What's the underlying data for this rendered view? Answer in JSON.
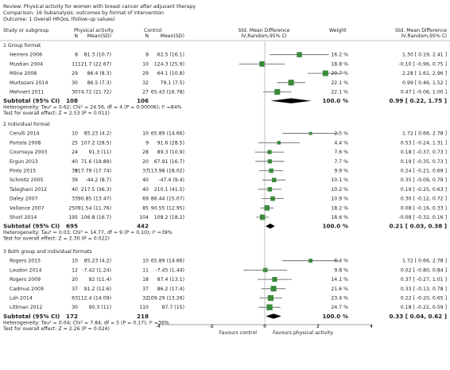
{
  "header": {
    "review": "Review:  Physical activity for women with breast cancer after adjuvant therapy",
    "comparison": "Comparison:  16 Subanalysis: outcomes by format of intervention",
    "outcome": "Outcome:  1 Overall HRQoL (follow-up values)"
  },
  "columns": {
    "study": "Study or subgroup",
    "group1": "Physical activity",
    "group2": "Control",
    "n": "N",
    "mean_sd": "Mean(SD)",
    "effect": "Std. Mean Difference",
    "effect_method": "IV,Random,95% CI",
    "weight": "Weight",
    "effect2": "Std. Mean Difference",
    "effect2_method": "IV,Random,95% CI"
  },
  "colors": {
    "marker": "#3a8a3a",
    "line": "#555555",
    "diamond": "#000000"
  },
  "chart_data": {
    "type": "forest",
    "xlim": [
      -4,
      4
    ],
    "ticks": [
      -4,
      -2,
      0,
      2,
      4
    ],
    "x_left_label": "Favours control",
    "x_right_label": "Favours physical activity",
    "subgroups": [
      {
        "title": "1 Group format",
        "studies": [
          {
            "name": "Herrero 2006",
            "n1": "8",
            "ms1": "81.3 (10.7)",
            "n2": "8",
            "ms2": "62.5 (16.1)",
            "weight": "16.2 %",
            "ci_text": "1.30 [ 0.19, 2.41 ]",
            "est": 1.3,
            "lo": 0.19,
            "hi": 2.41
          },
          {
            "name": "Mustian 2004",
            "n1": "11",
            "ms1": "121.7 (22.67)",
            "n2": "10",
            "ms2": "124.3 (25.9)",
            "weight": "18.8 %",
            "ci_text": "-0.10 [ -0.96, 0.75 ]",
            "est": -0.1,
            "lo": -0.96,
            "hi": 0.75
          },
          {
            "name": "Milne 2008",
            "n1": "29",
            "ms1": "86.4 (8.3)",
            "n2": "29",
            "ms2": "64.1 (10.8)",
            "weight": "20.7 %",
            "ci_text": "2.28 [ 1.61, 2.96 ]",
            "est": 2.28,
            "lo": 1.61,
            "hi": 2.96
          },
          {
            "name": "Murtezani 2014",
            "n1": "30",
            "ms1": "86.5 (7.3)",
            "n2": "32",
            "ms2": "79.1 (7.5)",
            "weight": "22.1 %",
            "ci_text": "0.99 [ 0.46, 1.52 ]",
            "est": 0.99,
            "lo": 0.46,
            "hi": 1.52
          },
          {
            "name": "Mehnert 2011",
            "n1": "30",
            "ms1": "74.72 (21.72)",
            "n2": "27",
            "ms2": "65.43 (16.78)",
            "weight": "22.1 %",
            "ci_text": "0.47 [ -0.06, 1.00 ]",
            "est": 0.47,
            "lo": -0.06,
            "hi": 1.0
          }
        ],
        "subtotal": {
          "label": "Subtotal (95% CI)",
          "n1": "108",
          "n2": "106",
          "weight": "100.0 %",
          "ci_text": "0.99 [ 0.22, 1.75 ]",
          "est": 0.99,
          "lo": 0.22,
          "hi": 1.75
        },
        "heterogeneity": "Heterogeneity: Tau² = 0.62; Chi² = 24.56, df = 4 (P = 0.00006); I² =84%",
        "overall": "Test for overall effect: Z = 2.53 (P = 0.011)"
      },
      {
        "title": "2 Individual format",
        "studies": [
          {
            "name": "Cerulli 2014",
            "n1": "10",
            "ms1": "85.23 (4.2)",
            "n2": "10",
            "ms2": "65.89 (14.66)",
            "weight": "2.5 %",
            "ci_text": "1.72 [ 0.66, 2.78 ]",
            "est": 1.72,
            "lo": 0.66,
            "hi": 2.78
          },
          {
            "name": "Portela 2008",
            "n1": "25",
            "ms1": "107.2 (28.5)",
            "n2": "9",
            "ms2": "91.6 (28.5)",
            "weight": "4.4 %",
            "ci_text": "0.53 [ -0.24, 1.31 ]",
            "est": 0.53,
            "lo": -0.24,
            "hi": 1.31
          },
          {
            "name": "Courneya 2003",
            "n1": "24",
            "ms1": "91.3 (11)",
            "n2": "28",
            "ms2": "89.3 (10.9)",
            "weight": "7.6 %",
            "ci_text": "0.18 [ -0.37, 0.73 ]",
            "est": 0.18,
            "lo": -0.37,
            "hi": 0.73
          },
          {
            "name": "Ergun 2013",
            "n1": "40",
            "ms1": "71.6 (19.89)",
            "n2": "20",
            "ms2": "67.91 (16.7)",
            "weight": "7.7 %",
            "ci_text": "0.19 [ -0.35, 0.73 ]",
            "est": 0.19,
            "lo": -0.35,
            "hi": 0.73
          },
          {
            "name": "Pinto 2015",
            "n1": "39",
            "ms1": "117.79 (17.74)",
            "n2": "37",
            "ms2": "113.98 (18.02)",
            "weight": "9.9 %",
            "ci_text": "0.24 [ -0.21, 0.69 ]",
            "est": 0.24,
            "lo": -0.21,
            "hi": 0.69
          },
          {
            "name": "Schmitz 2005",
            "n1": "39",
            "ms1": "-44.2 (8.7)",
            "n2": "40",
            "ms2": "-47.4 (9.4)",
            "weight": "10.1 %",
            "ci_text": "0.35 [ -0.09, 0.79 ]",
            "est": 0.35,
            "lo": -0.09,
            "hi": 0.79
          },
          {
            "name": "Taleghani 2012",
            "n1": "40",
            "ms1": "217.5 (36.3)",
            "n2": "40",
            "ms2": "210.1 (41.5)",
            "weight": "10.2 %",
            "ci_text": "0.19 [ -0.25, 0.63 ]",
            "est": 0.19,
            "lo": -0.25,
            "hi": 0.63
          },
          {
            "name": "Daley 2007",
            "n1": "33",
            "ms1": "90.85 (13.47)",
            "n2": "69",
            "ms2": "86.44 (15.07)",
            "weight": "10.9 %",
            "ci_text": "0.30 [ -0.12, 0.72 ]",
            "est": 0.3,
            "lo": -0.12,
            "hi": 0.72
          },
          {
            "name": "Vallance 2007",
            "n1": "250",
            "ms1": "91.54 (11.76)",
            "n2": "85",
            "ms2": "90.55 (12.95)",
            "weight": "18.2 %",
            "ci_text": "0.08 [ -0.16, 0.33 ]",
            "est": 0.08,
            "lo": -0.16,
            "hi": 0.33
          },
          {
            "name": "Short 2014",
            "n1": "195",
            "ms1": "106.8 (16.7)",
            "n2": "104",
            "ms2": "108.2 (18.2)",
            "weight": "18.6 %",
            "ci_text": "-0.08 [ -0.32, 0.16 ]",
            "est": -0.08,
            "lo": -0.32,
            "hi": 0.16
          }
        ],
        "subtotal": {
          "label": "Subtotal (95% CI)",
          "n1": "695",
          "n2": "442",
          "weight": "100.0 %",
          "ci_text": "0.21 [ 0.03, 0.38 ]",
          "est": 0.21,
          "lo": 0.03,
          "hi": 0.38
        },
        "heterogeneity": "Heterogeneity: Tau² = 0.03; Chi² = 14.77, df = 9 (P = 0.10); I² =39%",
        "overall": "Test for overall effect: Z = 2.30 (P = 0.022)"
      },
      {
        "title": "3 Both group and individual formats",
        "studies": [
          {
            "name": "Rogers 2015",
            "n1": "10",
            "ms1": "85.23 (4.2)",
            "n2": "10",
            "ms2": "65.89 (14.66)",
            "weight": "6.4 %",
            "ci_text": "1.72 [ 0.66, 2.78 ]",
            "est": 1.72,
            "lo": 0.66,
            "hi": 2.78
          },
          {
            "name": "Loudon 2014",
            "n1": "12",
            "ms1": "-7.42 (1.24)",
            "n2": "11",
            "ms2": "-7.45 (1.44)",
            "weight": "9.8 %",
            "ci_text": "0.02 [ -0.80, 0.84 ]",
            "est": 0.02,
            "lo": -0.8,
            "hi": 0.84
          },
          {
            "name": "Rogers 2009",
            "n1": "20",
            "ms1": "92 (11.4)",
            "n2": "18",
            "ms2": "87.4 (13.1)",
            "weight": "14.1 %",
            "ci_text": "0.37 [ -0.27, 1.01 ]",
            "est": 0.37,
            "lo": -0.27,
            "hi": 1.01
          },
          {
            "name": "Cadmus 2009",
            "n1": "37",
            "ms1": "91.2 (12.6)",
            "n2": "37",
            "ms2": "86.2 (17.4)",
            "weight": "21.6 %",
            "ci_text": "0.33 [ -0.13, 0.78 ]",
            "est": 0.33,
            "lo": -0.13,
            "hi": 0.78
          },
          {
            "name": "Loh 2014",
            "n1": "63",
            "ms1": "112.4 (14.09)",
            "n2": "32",
            "ms2": "109.29 (13.26)",
            "weight": "23.4 %",
            "ci_text": "0.22 [ -0.20, 0.65 ]",
            "est": 0.22,
            "lo": -0.2,
            "hi": 0.65
          },
          {
            "name": "Littman 2012",
            "n1": "30",
            "ms1": "90.3 (11)",
            "n2": "110",
            "ms2": "87.7 (15)",
            "weight": "24.7 %",
            "ci_text": "0.18 [ -0.22, 0.59 ]",
            "est": 0.18,
            "lo": -0.22,
            "hi": 0.59
          }
        ],
        "subtotal": {
          "label": "Subtotal (95% CI)",
          "n1": "172",
          "n2": "218",
          "weight": "100.0 %",
          "ci_text": "0.33 [ 0.04, 0.62 ]",
          "est": 0.33,
          "lo": 0.04,
          "hi": 0.62
        },
        "heterogeneity": "Heterogeneity: Tau² = 0.04; Chi² = 7.84, df = 5 (P = 0.17); I² =36%",
        "overall": "Test for overall effect: Z = 2.26 (P = 0.024)"
      }
    ]
  }
}
